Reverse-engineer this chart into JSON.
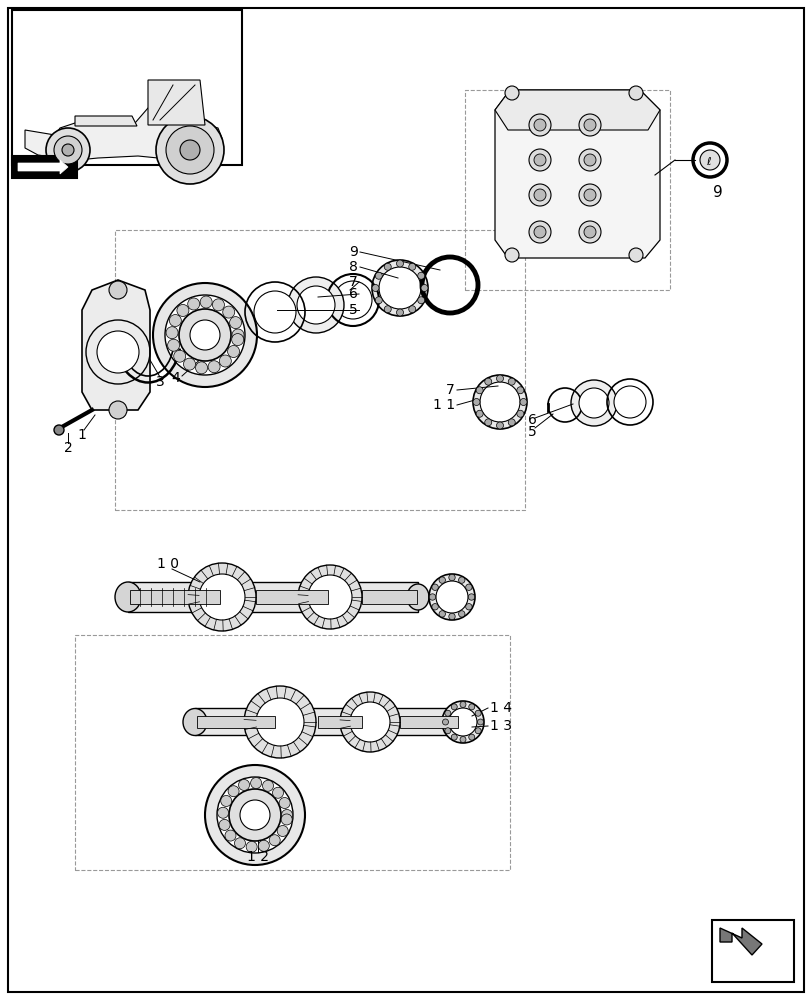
{
  "bg_color": "#ffffff",
  "line_color": "#000000",
  "dashed_color": "#aaaaaa",
  "light_gray": "#cccccc",
  "border_color": "#000000"
}
